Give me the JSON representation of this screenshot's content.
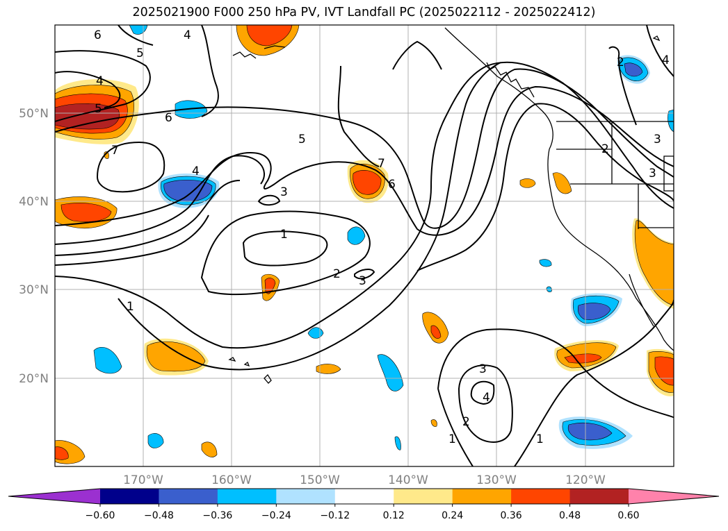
{
  "title": "2025021900 F000 250 hPa PV, IVT Landfall PC (2025022112 - 2025022412)",
  "lon_ticks": [
    "170°W",
    "160°W",
    "150°W",
    "140°W",
    "130°W",
    "120°W"
  ],
  "lat_ticks": [
    "50°N",
    "40°N",
    "30°N",
    "20°N"
  ],
  "colorbar": {
    "ticks": [
      "−0.60",
      "−0.48",
      "−0.36",
      "−0.24",
      "−0.12",
      "0.12",
      "0.24",
      "0.36",
      "0.48",
      "0.60"
    ],
    "colors": [
      "#9b30d0",
      "#00008b",
      "#3a5fcd",
      "#00bfff",
      "#b0e2ff",
      "#ffffff",
      "#ffe98a",
      "#ffa500",
      "#ff4500",
      "#b22222",
      "#ff82ab"
    ]
  },
  "contour_labels": [
    "6",
    "4",
    "5",
    "4",
    "5",
    "6",
    "7",
    "4",
    "3",
    "1",
    "2",
    "3",
    "5",
    "7",
    "6",
    "1",
    "3",
    "4",
    "2",
    "1",
    "1",
    "2",
    "2",
    "3",
    "3",
    "4"
  ]
}
